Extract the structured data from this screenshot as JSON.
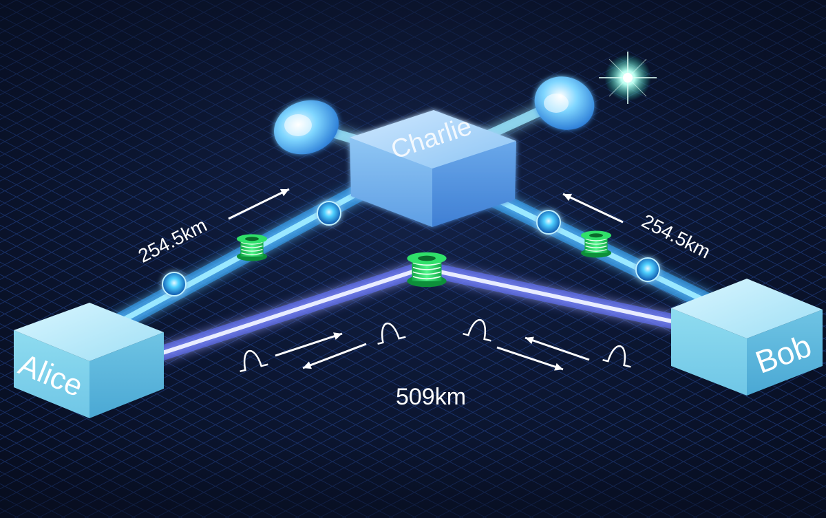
{
  "nodes": {
    "alice": {
      "label": "Alice"
    },
    "bob": {
      "label": "Bob"
    },
    "charlie": {
      "label": "Charlie"
    }
  },
  "distances": {
    "alice_charlie": "254.5km",
    "bob_charlie": "254.5km",
    "alice_bob": "509km"
  },
  "colors": {
    "background": "#0b1530",
    "grid": "#1f3a7a",
    "beam_cyan": "#5ad7ff",
    "beam_blue": "#7a8cff",
    "cube_face": "#9fe2f2",
    "spool_green": "#22d35b",
    "photon": "#3fb7ff",
    "star": "#aaffee"
  }
}
